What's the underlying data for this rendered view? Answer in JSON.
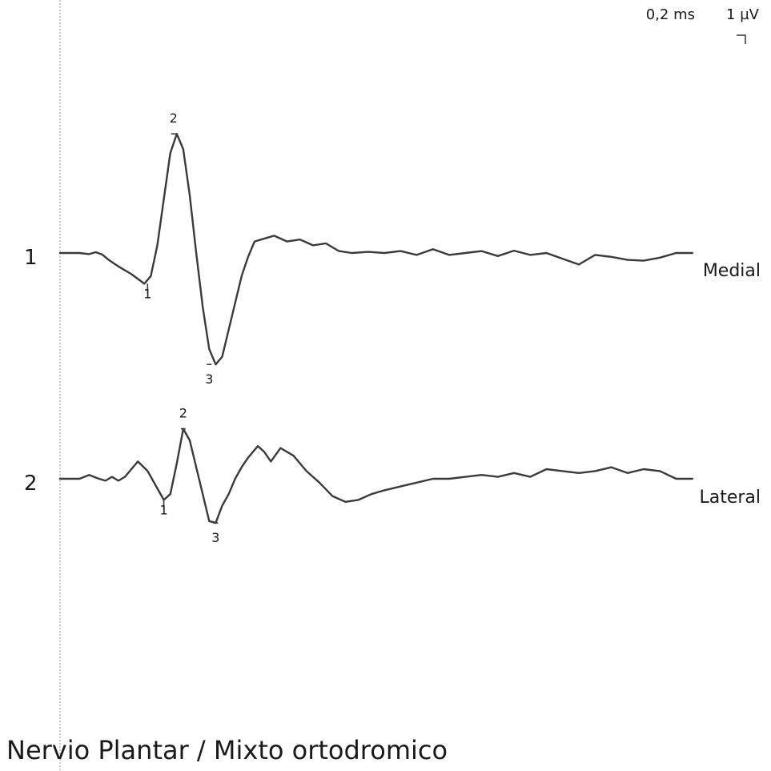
{
  "chart_data": {
    "type": "line",
    "title": "Nervio Plantar / Mixto ortodromico",
    "scale": {
      "time": "0,2 ms",
      "amplitude": "1 µV"
    },
    "xlabel": "",
    "ylabel": "",
    "grid": false,
    "x_unit": "ms",
    "y_unit": "µV",
    "xlim": [
      0,
      2.2
    ],
    "series": [
      {
        "number": "1",
        "name": "Medial",
        "x": [
          0.0,
          0.06,
          0.09,
          0.11,
          0.13,
          0.15,
          0.18,
          0.22,
          0.26,
          0.28,
          0.3,
          0.32,
          0.34,
          0.36,
          0.38,
          0.4,
          0.42,
          0.44,
          0.46,
          0.48,
          0.5,
          0.52,
          0.54,
          0.56,
          0.58,
          0.6,
          0.62,
          0.64,
          0.66,
          0.7,
          0.74,
          0.78,
          0.82,
          0.86,
          0.9,
          0.95,
          1.0,
          1.05,
          1.1,
          1.15,
          1.2,
          1.25,
          1.3,
          1.35,
          1.4,
          1.45,
          1.5,
          1.55,
          1.6,
          1.65,
          1.7,
          1.75,
          1.8,
          1.85,
          1.9,
          1.95
        ],
        "y": [
          0.0,
          0.0,
          -0.03,
          0.02,
          -0.04,
          -0.18,
          -0.35,
          -0.55,
          -0.8,
          -0.6,
          0.2,
          1.4,
          2.6,
          3.1,
          2.7,
          1.5,
          0.0,
          -1.4,
          -2.5,
          -2.9,
          -2.7,
          -2.0,
          -1.3,
          -0.6,
          -0.1,
          0.3,
          0.35,
          0.4,
          0.45,
          0.3,
          0.35,
          0.2,
          0.25,
          0.05,
          0.0,
          0.03,
          0.0,
          0.05,
          -0.05,
          0.1,
          -0.05,
          0.0,
          0.05,
          -0.08,
          0.06,
          -0.05,
          0.0,
          -0.15,
          -0.3,
          -0.05,
          -0.1,
          -0.18,
          -0.2,
          -0.12,
          0.0,
          0.0
        ],
        "markers": [
          {
            "label": "1",
            "x": 0.27,
            "y": -0.8
          },
          {
            "label": "2",
            "x": 0.35,
            "y": 3.1
          },
          {
            "label": "3",
            "x": 0.46,
            "y": -2.9
          }
        ]
      },
      {
        "number": "2",
        "name": "Lateral",
        "x": [
          0.0,
          0.06,
          0.09,
          0.12,
          0.14,
          0.16,
          0.18,
          0.2,
          0.24,
          0.27,
          0.3,
          0.32,
          0.34,
          0.36,
          0.38,
          0.4,
          0.42,
          0.44,
          0.46,
          0.48,
          0.5,
          0.52,
          0.54,
          0.56,
          0.58,
          0.61,
          0.63,
          0.65,
          0.68,
          0.72,
          0.76,
          0.8,
          0.84,
          0.88,
          0.92,
          0.96,
          1.0,
          1.05,
          1.1,
          1.15,
          1.2,
          1.25,
          1.3,
          1.35,
          1.4,
          1.45,
          1.5,
          1.55,
          1.6,
          1.65,
          1.7,
          1.75,
          1.8,
          1.85,
          1.9,
          1.95
        ],
        "y": [
          0.0,
          0.0,
          0.1,
          0.0,
          -0.05,
          0.05,
          -0.05,
          0.05,
          0.45,
          0.2,
          -0.25,
          -0.55,
          -0.4,
          0.4,
          1.3,
          1.0,
          0.3,
          -0.4,
          -1.1,
          -1.15,
          -0.7,
          -0.4,
          0.0,
          0.3,
          0.55,
          0.85,
          0.7,
          0.45,
          0.8,
          0.6,
          0.2,
          -0.1,
          -0.45,
          -0.6,
          -0.55,
          -0.4,
          -0.3,
          -0.2,
          -0.1,
          0.0,
          0.0,
          0.05,
          0.1,
          0.05,
          0.15,
          0.05,
          0.25,
          0.2,
          0.15,
          0.2,
          0.3,
          0.15,
          0.25,
          0.2,
          0.0,
          0.0
        ],
        "markers": [
          {
            "label": "1",
            "x": 0.32,
            "y": -0.55
          },
          {
            "label": "2",
            "x": 0.38,
            "y": 1.3
          },
          {
            "label": "3",
            "x": 0.48,
            "y": -1.15
          }
        ]
      }
    ]
  }
}
